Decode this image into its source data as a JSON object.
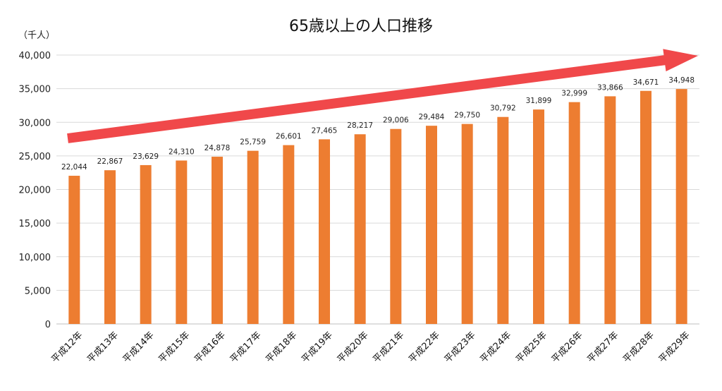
{
  "chart_data": {
    "type": "bar",
    "title": "65歳以上の人口推移",
    "unit_label": "（千人）",
    "categories": [
      "平成12年",
      "平成13年",
      "平成14年",
      "平成15年",
      "平成16年",
      "平成17年",
      "平成18年",
      "平成19年",
      "平成20年",
      "平成21年",
      "平成22年",
      "平成23年",
      "平成24年",
      "平成25年",
      "平成26年",
      "平成27年",
      "平成28年",
      "平成29年"
    ],
    "values": [
      22044,
      22867,
      23629,
      24310,
      24878,
      25759,
      26601,
      27465,
      28217,
      29006,
      29484,
      29750,
      30792,
      31899,
      32999,
      33866,
      34671,
      34948
    ],
    "value_labels": [
      "22,044",
      "22,867",
      "23,629",
      "24,310",
      "24,878",
      "25,759",
      "26,601",
      "27,465",
      "28,217",
      "29,006",
      "29,484",
      "29,750",
      "30,792",
      "31,899",
      "32,999",
      "33,866",
      "34,671",
      "34,948"
    ],
    "ylim": [
      0,
      40000
    ],
    "yticks": [
      0,
      5000,
      10000,
      15000,
      20000,
      25000,
      30000,
      35000,
      40000
    ],
    "ytick_labels": [
      "0",
      "5,000",
      "10,000",
      "15,000",
      "20,000",
      "25,000",
      "30,000",
      "35,000",
      "40,000"
    ],
    "grid": true,
    "legend": "none",
    "bar_color": "#ED7D31",
    "annotation": {
      "type": "trend-arrow",
      "color": "#F0484A",
      "direction": "up-right"
    }
  }
}
